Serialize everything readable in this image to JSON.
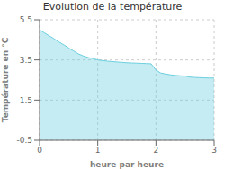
{
  "chart_data": {
    "type": "area",
    "title": "Evolution de la température",
    "xlabel": "heure par heure",
    "ylabel": "Température en °C",
    "x": [
      0,
      0.083,
      0.167,
      0.25,
      0.333,
      0.417,
      0.5,
      0.583,
      0.667,
      0.75,
      0.833,
      0.917,
      1.0,
      1.083,
      1.167,
      1.25,
      1.333,
      1.417,
      1.5,
      1.583,
      1.667,
      1.75,
      1.833,
      1.917,
      2.0,
      2.083,
      2.167,
      2.25,
      2.333,
      2.417,
      2.5,
      2.583,
      2.667,
      2.75,
      2.833,
      2.917,
      3.0
    ],
    "values": [
      5.0,
      4.85,
      4.7,
      4.55,
      4.4,
      4.25,
      4.1,
      3.95,
      3.8,
      3.7,
      3.62,
      3.57,
      3.5,
      3.47,
      3.44,
      3.42,
      3.4,
      3.38,
      3.36,
      3.35,
      3.34,
      3.33,
      3.32,
      3.31,
      3.0,
      2.85,
      2.8,
      2.76,
      2.73,
      2.71,
      2.7,
      2.65,
      2.63,
      2.62,
      2.61,
      2.6,
      2.6
    ],
    "color": "#6bcfdf",
    "xlim": [
      0,
      3
    ],
    "ylim": [
      -0.5,
      5.5
    ],
    "xticks": [
      0,
      1,
      2,
      3
    ],
    "yticks": [
      -0.5,
      1.5,
      3.5,
      5.5
    ],
    "grid": true
  }
}
